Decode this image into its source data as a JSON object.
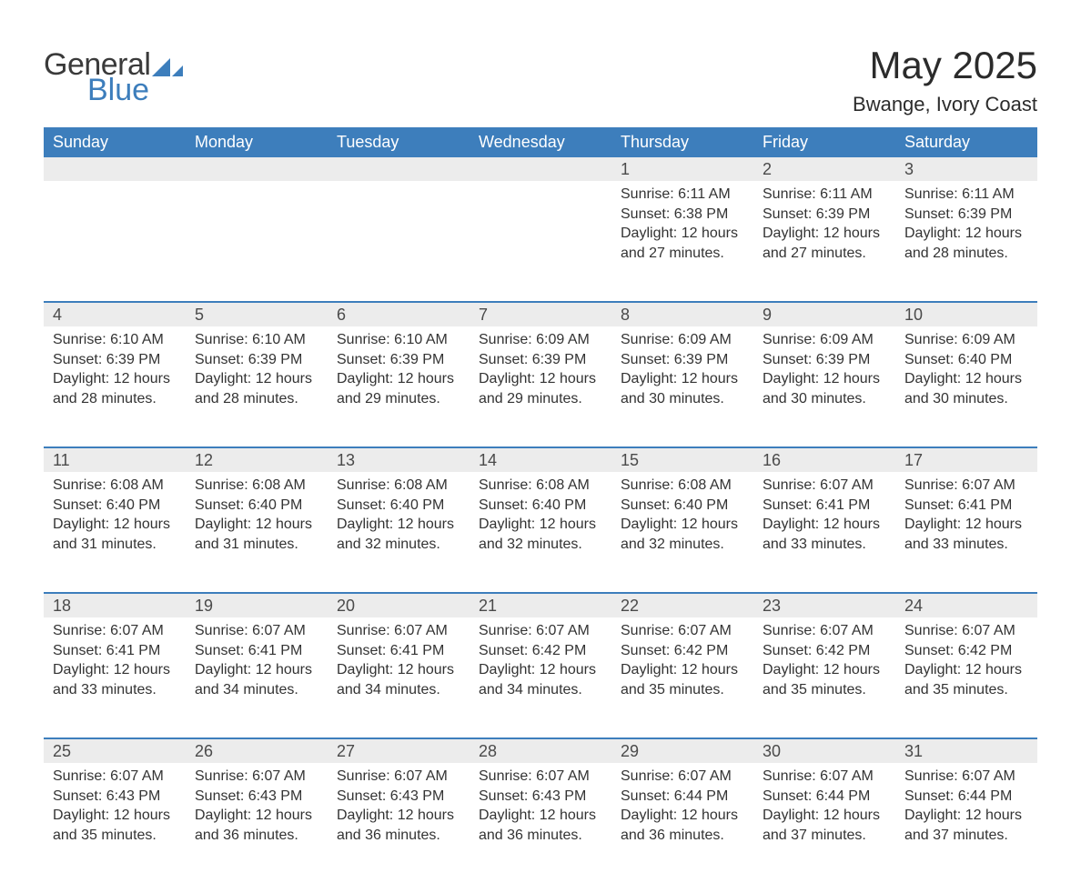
{
  "brand": {
    "word1": "General",
    "word2": "Blue",
    "word1_color": "#3a3a3a",
    "word2_color": "#3d7ebc",
    "icon_color": "#3d7ebc"
  },
  "header": {
    "title": "May 2025",
    "location": "Bwange, Ivory Coast"
  },
  "calendar": {
    "accent_color": "#3d7ebc",
    "header_bg": "#3d7ebc",
    "header_fg": "#ffffff",
    "daynum_bg": "#ececec",
    "daynum_fg": "#4a4a4a",
    "body_fg": "#333333",
    "columns": [
      "Sunday",
      "Monday",
      "Tuesday",
      "Wednesday",
      "Thursday",
      "Friday",
      "Saturday"
    ],
    "weeks": [
      [
        null,
        null,
        null,
        null,
        {
          "n": "1",
          "sunrise": "6:11 AM",
          "sunset": "6:38 PM",
          "daylight": "12 hours and 27 minutes."
        },
        {
          "n": "2",
          "sunrise": "6:11 AM",
          "sunset": "6:39 PM",
          "daylight": "12 hours and 27 minutes."
        },
        {
          "n": "3",
          "sunrise": "6:11 AM",
          "sunset": "6:39 PM",
          "daylight": "12 hours and 28 minutes."
        }
      ],
      [
        {
          "n": "4",
          "sunrise": "6:10 AM",
          "sunset": "6:39 PM",
          "daylight": "12 hours and 28 minutes."
        },
        {
          "n": "5",
          "sunrise": "6:10 AM",
          "sunset": "6:39 PM",
          "daylight": "12 hours and 28 minutes."
        },
        {
          "n": "6",
          "sunrise": "6:10 AM",
          "sunset": "6:39 PM",
          "daylight": "12 hours and 29 minutes."
        },
        {
          "n": "7",
          "sunrise": "6:09 AM",
          "sunset": "6:39 PM",
          "daylight": "12 hours and 29 minutes."
        },
        {
          "n": "8",
          "sunrise": "6:09 AM",
          "sunset": "6:39 PM",
          "daylight": "12 hours and 30 minutes."
        },
        {
          "n": "9",
          "sunrise": "6:09 AM",
          "sunset": "6:39 PM",
          "daylight": "12 hours and 30 minutes."
        },
        {
          "n": "10",
          "sunrise": "6:09 AM",
          "sunset": "6:40 PM",
          "daylight": "12 hours and 30 minutes."
        }
      ],
      [
        {
          "n": "11",
          "sunrise": "6:08 AM",
          "sunset": "6:40 PM",
          "daylight": "12 hours and 31 minutes."
        },
        {
          "n": "12",
          "sunrise": "6:08 AM",
          "sunset": "6:40 PM",
          "daylight": "12 hours and 31 minutes."
        },
        {
          "n": "13",
          "sunrise": "6:08 AM",
          "sunset": "6:40 PM",
          "daylight": "12 hours and 32 minutes."
        },
        {
          "n": "14",
          "sunrise": "6:08 AM",
          "sunset": "6:40 PM",
          "daylight": "12 hours and 32 minutes."
        },
        {
          "n": "15",
          "sunrise": "6:08 AM",
          "sunset": "6:40 PM",
          "daylight": "12 hours and 32 minutes."
        },
        {
          "n": "16",
          "sunrise": "6:07 AM",
          "sunset": "6:41 PM",
          "daylight": "12 hours and 33 minutes."
        },
        {
          "n": "17",
          "sunrise": "6:07 AM",
          "sunset": "6:41 PM",
          "daylight": "12 hours and 33 minutes."
        }
      ],
      [
        {
          "n": "18",
          "sunrise": "6:07 AM",
          "sunset": "6:41 PM",
          "daylight": "12 hours and 33 minutes."
        },
        {
          "n": "19",
          "sunrise": "6:07 AM",
          "sunset": "6:41 PM",
          "daylight": "12 hours and 34 minutes."
        },
        {
          "n": "20",
          "sunrise": "6:07 AM",
          "sunset": "6:41 PM",
          "daylight": "12 hours and 34 minutes."
        },
        {
          "n": "21",
          "sunrise": "6:07 AM",
          "sunset": "6:42 PM",
          "daylight": "12 hours and 34 minutes."
        },
        {
          "n": "22",
          "sunrise": "6:07 AM",
          "sunset": "6:42 PM",
          "daylight": "12 hours and 35 minutes."
        },
        {
          "n": "23",
          "sunrise": "6:07 AM",
          "sunset": "6:42 PM",
          "daylight": "12 hours and 35 minutes."
        },
        {
          "n": "24",
          "sunrise": "6:07 AM",
          "sunset": "6:42 PM",
          "daylight": "12 hours and 35 minutes."
        }
      ],
      [
        {
          "n": "25",
          "sunrise": "6:07 AM",
          "sunset": "6:43 PM",
          "daylight": "12 hours and 35 minutes."
        },
        {
          "n": "26",
          "sunrise": "6:07 AM",
          "sunset": "6:43 PM",
          "daylight": "12 hours and 36 minutes."
        },
        {
          "n": "27",
          "sunrise": "6:07 AM",
          "sunset": "6:43 PM",
          "daylight": "12 hours and 36 minutes."
        },
        {
          "n": "28",
          "sunrise": "6:07 AM",
          "sunset": "6:43 PM",
          "daylight": "12 hours and 36 minutes."
        },
        {
          "n": "29",
          "sunrise": "6:07 AM",
          "sunset": "6:44 PM",
          "daylight": "12 hours and 36 minutes."
        },
        {
          "n": "30",
          "sunrise": "6:07 AM",
          "sunset": "6:44 PM",
          "daylight": "12 hours and 37 minutes."
        },
        {
          "n": "31",
          "sunrise": "6:07 AM",
          "sunset": "6:44 PM",
          "daylight": "12 hours and 37 minutes."
        }
      ]
    ],
    "labels": {
      "sunrise": "Sunrise:",
      "sunset": "Sunset:",
      "daylight": "Daylight:"
    }
  }
}
